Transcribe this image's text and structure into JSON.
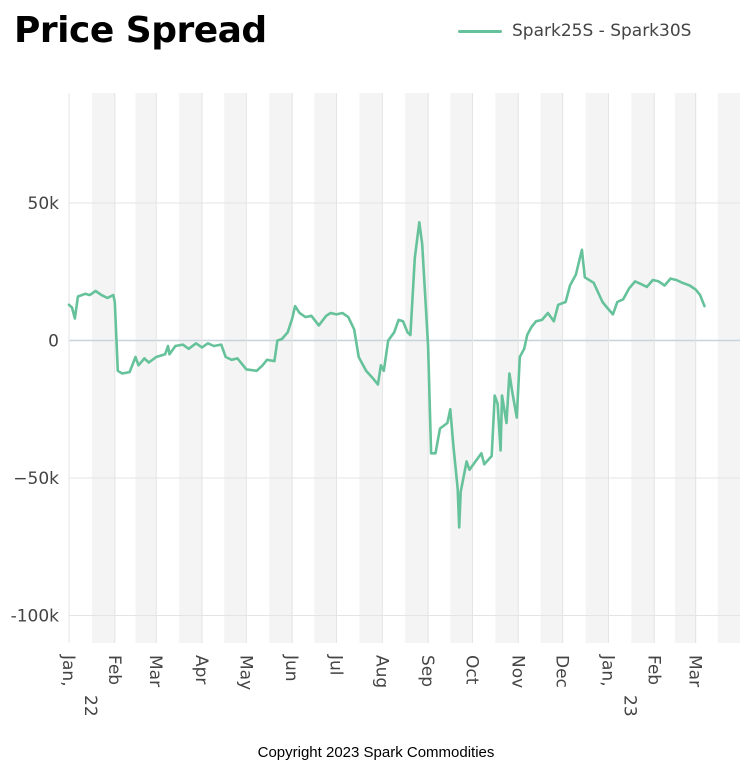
{
  "title": "Price Spread",
  "copyright": "Copyright 2023 Spark Commodities",
  "chart_data": {
    "type": "line",
    "title": "Price Spread",
    "legend_position": "top-right",
    "grid": true,
    "ylim": [
      -110000,
      90000
    ],
    "yticks": [
      50000,
      0,
      -50000,
      -100000
    ],
    "ytick_labels": [
      "50k",
      "0",
      "−50k",
      "-100k"
    ],
    "xlim": [
      "2022-01-01",
      "2023-03-31"
    ],
    "xticks": [
      {
        "date": "2022-01-01",
        "label": [
          "Jan,",
          "22"
        ]
      },
      {
        "date": "2022-02-01",
        "label": [
          "Feb"
        ]
      },
      {
        "date": "2022-03-01",
        "label": [
          "Mar"
        ]
      },
      {
        "date": "2022-04-01",
        "label": [
          "Apr"
        ]
      },
      {
        "date": "2022-05-01",
        "label": [
          "May"
        ]
      },
      {
        "date": "2022-06-01",
        "label": [
          "Jun"
        ]
      },
      {
        "date": "2022-07-01",
        "label": [
          "Jul"
        ]
      },
      {
        "date": "2022-08-01",
        "label": [
          "Aug"
        ]
      },
      {
        "date": "2022-09-01",
        "label": [
          "Sep"
        ]
      },
      {
        "date": "2022-10-01",
        "label": [
          "Oct"
        ]
      },
      {
        "date": "2022-11-01",
        "label": [
          "Nov"
        ]
      },
      {
        "date": "2022-12-01",
        "label": [
          "Dec"
        ]
      },
      {
        "date": "2023-01-01",
        "label": [
          "Jan,",
          "23"
        ]
      },
      {
        "date": "2023-02-01",
        "label": [
          "Feb"
        ]
      },
      {
        "date": "2023-03-01",
        "label": [
          "Mar"
        ]
      }
    ],
    "colors": {
      "line": "#66c29a",
      "band": "#f4f4f4",
      "grid": "#e4e4e4",
      "zero_line": "#c8d4dc",
      "tick_text": "#444444"
    },
    "series": [
      {
        "name": "Spark25S - Spark30S",
        "points": [
          [
            "2022-01-01",
            13000
          ],
          [
            "2022-01-03",
            12000
          ],
          [
            "2022-01-05",
            8000
          ],
          [
            "2022-01-07",
            16000
          ],
          [
            "2022-01-12",
            17000
          ],
          [
            "2022-01-15",
            16500
          ],
          [
            "2022-01-19",
            18000
          ],
          [
            "2022-01-23",
            16500
          ],
          [
            "2022-01-27",
            15500
          ],
          [
            "2022-01-31",
            16500
          ],
          [
            "2022-02-01",
            14000
          ],
          [
            "2022-02-03",
            -11000
          ],
          [
            "2022-02-06",
            -12000
          ],
          [
            "2022-02-11",
            -11500
          ],
          [
            "2022-02-15",
            -6000
          ],
          [
            "2022-02-17",
            -9000
          ],
          [
            "2022-02-21",
            -6500
          ],
          [
            "2022-02-24",
            -8000
          ],
          [
            "2022-03-01",
            -6000
          ],
          [
            "2022-03-07",
            -5000
          ],
          [
            "2022-03-09",
            -2000
          ],
          [
            "2022-03-10",
            -5000
          ],
          [
            "2022-03-14",
            -2000
          ],
          [
            "2022-03-19",
            -1500
          ],
          [
            "2022-03-23",
            -3000
          ],
          [
            "2022-03-28",
            -1000
          ],
          [
            "2022-04-01",
            -2500
          ],
          [
            "2022-04-05",
            -1000
          ],
          [
            "2022-04-09",
            -2000
          ],
          [
            "2022-04-14",
            -1500
          ],
          [
            "2022-04-17",
            -6000
          ],
          [
            "2022-04-21",
            -7000
          ],
          [
            "2022-04-25",
            -6500
          ],
          [
            "2022-05-01",
            -10500
          ],
          [
            "2022-05-08",
            -11000
          ],
          [
            "2022-05-12",
            -9000
          ],
          [
            "2022-05-15",
            -7000
          ],
          [
            "2022-05-20",
            -7500
          ],
          [
            "2022-05-22",
            0
          ],
          [
            "2022-05-25",
            500
          ],
          [
            "2022-05-29",
            3000
          ],
          [
            "2022-06-01",
            8000
          ],
          [
            "2022-06-03",
            12500
          ],
          [
            "2022-06-06",
            10000
          ],
          [
            "2022-06-10",
            8500
          ],
          [
            "2022-06-14",
            9000
          ],
          [
            "2022-06-19",
            5500
          ],
          [
            "2022-06-24",
            9000
          ],
          [
            "2022-06-27",
            10000
          ],
          [
            "2022-07-01",
            9500
          ],
          [
            "2022-07-05",
            10000
          ],
          [
            "2022-07-09",
            8500
          ],
          [
            "2022-07-13",
            4000
          ],
          [
            "2022-07-16",
            -6000
          ],
          [
            "2022-07-21",
            -11000
          ],
          [
            "2022-07-26",
            -14000
          ],
          [
            "2022-07-29",
            -16000
          ],
          [
            "2022-07-31",
            -9000
          ],
          [
            "2022-08-02",
            -11000
          ],
          [
            "2022-08-05",
            0
          ],
          [
            "2022-08-09",
            3000
          ],
          [
            "2022-08-12",
            7500
          ],
          [
            "2022-08-15",
            7000
          ],
          [
            "2022-08-18",
            3000
          ],
          [
            "2022-08-20",
            2000
          ],
          [
            "2022-08-23",
            30000
          ],
          [
            "2022-08-26",
            43000
          ],
          [
            "2022-08-28",
            35000
          ],
          [
            "2022-09-01",
            -2000
          ],
          [
            "2022-09-03",
            -41000
          ],
          [
            "2022-09-06",
            -41000
          ],
          [
            "2022-09-09",
            -32000
          ],
          [
            "2022-09-14",
            -30000
          ],
          [
            "2022-09-16",
            -25000
          ],
          [
            "2022-09-18",
            -38000
          ],
          [
            "2022-09-21",
            -54000
          ],
          [
            "2022-09-22",
            -68000
          ],
          [
            "2022-09-23",
            -55000
          ],
          [
            "2022-09-27",
            -44000
          ],
          [
            "2022-09-29",
            -47000
          ],
          [
            "2022-10-03",
            -44000
          ],
          [
            "2022-10-07",
            -41000
          ],
          [
            "2022-10-09",
            -45000
          ],
          [
            "2022-10-14",
            -42000
          ],
          [
            "2022-10-16",
            -20000
          ],
          [
            "2022-10-18",
            -23000
          ],
          [
            "2022-10-20",
            -40000
          ],
          [
            "2022-10-21",
            -20000
          ],
          [
            "2022-10-24",
            -30000
          ],
          [
            "2022-10-26",
            -12000
          ],
          [
            "2022-10-28",
            -19000
          ],
          [
            "2022-10-31",
            -28000
          ],
          [
            "2022-11-02",
            -6000
          ],
          [
            "2022-11-05",
            -3000
          ],
          [
            "2022-11-07",
            2000
          ],
          [
            "2022-11-10",
            5000
          ],
          [
            "2022-11-13",
            7000
          ],
          [
            "2022-11-17",
            7500
          ],
          [
            "2022-11-21",
            10000
          ],
          [
            "2022-11-25",
            7000
          ],
          [
            "2022-11-28",
            13000
          ],
          [
            "2022-12-03",
            14000
          ],
          [
            "2022-12-06",
            20000
          ],
          [
            "2022-12-10",
            24000
          ],
          [
            "2022-12-14",
            33000
          ],
          [
            "2022-12-16",
            23000
          ],
          [
            "2022-12-22",
            21000
          ],
          [
            "2022-12-28",
            14000
          ],
          [
            "2022-12-31",
            12000
          ],
          [
            "2023-01-04",
            9500
          ],
          [
            "2023-01-07",
            14000
          ],
          [
            "2023-01-11",
            15000
          ],
          [
            "2023-01-15",
            19000
          ],
          [
            "2023-01-19",
            21500
          ],
          [
            "2023-01-23",
            20500
          ],
          [
            "2023-01-27",
            19500
          ],
          [
            "2023-01-31",
            22000
          ],
          [
            "2023-02-04",
            21500
          ],
          [
            "2023-02-08",
            20000
          ],
          [
            "2023-02-12",
            22500
          ],
          [
            "2023-02-16",
            22000
          ],
          [
            "2023-02-20",
            21000
          ],
          [
            "2023-02-25",
            20000
          ],
          [
            "2023-03-01",
            18500
          ],
          [
            "2023-03-04",
            16500
          ],
          [
            "2023-03-07",
            12500
          ]
        ]
      }
    ]
  }
}
